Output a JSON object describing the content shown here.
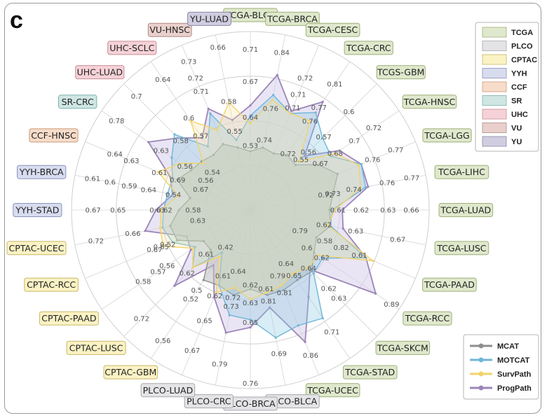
{
  "panel_label": "c",
  "chart_data": {
    "type": "radar",
    "rlim": [
      0.3,
      1.0
    ],
    "grid": true,
    "legend_position": "top-right (cohorts), bottom-right (methods)",
    "cohort_legend": [
      {
        "name": "TCGA",
        "color": "#dfe8cc",
        "border": "#9fb07a"
      },
      {
        "name": "PLCO",
        "color": "#e4e3e6",
        "border": "#a8a8ae"
      },
      {
        "name": "CPTAC",
        "color": "#fbf2c4",
        "border": "#c9b86a"
      },
      {
        "name": "YYH",
        "color": "#d7dcef",
        "border": "#8c93b8"
      },
      {
        "name": "CCF",
        "color": "#f8dcca",
        "border": "#c99a7c"
      },
      {
        "name": "SR",
        "color": "#cfe6e3",
        "border": "#7fb2ab"
      },
      {
        "name": "UHC",
        "color": "#f5d2d7",
        "border": "#c98c96"
      },
      {
        "name": "VU",
        "color": "#e9d0cc",
        "border": "#b08a84"
      },
      {
        "name": "YU",
        "color": "#d0cde0",
        "border": "#8d88a8"
      }
    ],
    "categories": [
      {
        "label": "TCGA-BLCA",
        "group": "TCGA"
      },
      {
        "label": "TCGA-BRCA",
        "group": "TCGA"
      },
      {
        "label": "TCGA-CESC",
        "group": "TCGA"
      },
      {
        "label": "TCGA-CRC",
        "group": "TCGA"
      },
      {
        "label": "TCGS-GBM",
        "group": "TCGA"
      },
      {
        "label": "TCGA-HNSC",
        "group": "TCGA"
      },
      {
        "label": "TCGA-LGG",
        "group": "TCGA"
      },
      {
        "label": "TCGA-LIHC",
        "group": "TCGA"
      },
      {
        "label": "TCGA-LUAD",
        "group": "TCGA"
      },
      {
        "label": "TCGA-LUSC",
        "group": "TCGA"
      },
      {
        "label": "TCGA-PAAD",
        "group": "TCGA"
      },
      {
        "label": "TCGA-RCC",
        "group": "TCGA"
      },
      {
        "label": "TCGA-SKCM",
        "group": "TCGA"
      },
      {
        "label": "TCGA-STAD",
        "group": "TCGA"
      },
      {
        "label": "TCGA-UCEC",
        "group": "TCGA"
      },
      {
        "label": "PLCO-BLCA",
        "group": "PLCO"
      },
      {
        "label": "PLCO-BRCA",
        "group": "PLCO"
      },
      {
        "label": "PLCO-CRC",
        "group": "PLCO"
      },
      {
        "label": "PLCO-LUAD",
        "group": "PLCO"
      },
      {
        "label": "CPTAC-GBM",
        "group": "CPTAC"
      },
      {
        "label": "CPTAC-LUSC",
        "group": "CPTAC"
      },
      {
        "label": "CPTAC-PAAD",
        "group": "CPTAC"
      },
      {
        "label": "CPTAC-RCC",
        "group": "CPTAC"
      },
      {
        "label": "CPTAC-UCEC",
        "group": "CPTAC"
      },
      {
        "label": "YYH-STAD",
        "group": "YYH"
      },
      {
        "label": "YYH-BRCA",
        "group": "YYH"
      },
      {
        "label": "CCF-HNSC",
        "group": "CCF"
      },
      {
        "label": "SR-CRC",
        "group": "SR"
      },
      {
        "label": "UHC-LUAD",
        "group": "UHC"
      },
      {
        "label": "UHC-SCLC",
        "group": "UHC"
      },
      {
        "label": "VU-HNSC",
        "group": "VU"
      },
      {
        "label": "YU-LUAD",
        "group": "YU"
      }
    ],
    "series": [
      {
        "name": "MCAT",
        "color": "#8e8e8e",
        "fill": "#bdbdbd",
        "fill_opacity": 0.55,
        "values": [
          0.53,
          0.55,
          0.54,
          0.56,
          0.55,
          0.62,
          0.67,
          0.63,
          0.61,
          0.62,
          0.58,
          0.6,
          0.64,
          0.63,
          0.64,
          0.64,
          0.61,
          0.64,
          0.62,
          0.63,
          0.52,
          0.52,
          0.61,
          0.62,
          0.58,
          0.54,
          0.61,
          0.58,
          0.57,
          0.56,
          0.58,
          0.55
        ]
      },
      {
        "name": "MOTCAT",
        "color": "#6fb6d8",
        "fill": "#8fcbe3",
        "fill_opacity": 0.35,
        "values": [
          0.67,
          0.76,
          0.71,
          0.76,
          0.7,
          0.68,
          0.77,
          0.76,
          0.62,
          0.62,
          0.79,
          0.64,
          0.65,
          0.81,
          0.79,
          0.81,
          0.73,
          0.72,
          0.62,
          0.5,
          0.62,
          0.56,
          0.63,
          0.65,
          0.64,
          0.63,
          0.63,
          0.67,
          0.72,
          0.6,
          0.71,
          0.58
        ]
      },
      {
        "name": "SurvPath",
        "color": "#f2d36b",
        "fill": "#f7e59e",
        "fill_opacity": 0.3,
        "values": [
          0.64,
          0.74,
          0.71,
          0.72,
          0.57,
          0.7,
          0.76,
          0.74,
          0.63,
          0.61,
          0.82,
          0.62,
          0.62,
          0.6,
          0.62,
          0.63,
          0.65,
          0.61,
          0.65,
          0.52,
          0.62,
          0.57,
          0.67,
          0.66,
          0.65,
          0.59,
          0.69,
          0.63,
          0.56,
          0.72,
          0.64,
          0.73
        ]
      },
      {
        "name": "ProgPath",
        "color": "#9b86b8",
        "fill": "#d9d0eb",
        "fill_opacity": 0.55,
        "values": [
          0.71,
          0.84,
          0.72,
          0.81,
          0.6,
          0.72,
          0.77,
          0.77,
          0.66,
          0.67,
          0.79,
          0.89,
          0.63,
          0.71,
          0.86,
          0.69,
          0.76,
          0.79,
          0.67,
          0.56,
          0.72,
          0.58,
          0.57,
          0.72,
          0.67,
          0.61,
          0.64,
          0.78,
          0.7,
          0.64,
          0.73,
          0.66
        ]
      }
    ],
    "value_labels": [
      {
        "i": 0,
        "v": "0.71",
        "r": 0.9
      },
      {
        "i": 0,
        "v": "0.67",
        "r": 0.72
      },
      {
        "i": 0,
        "v": "0.64",
        "r": 0.52
      },
      {
        "i": 0,
        "v": "0.53",
        "r": 0.36
      },
      {
        "i": 1,
        "v": "0.84",
        "r": 0.9
      },
      {
        "i": 1,
        "v": "0.76",
        "r": 0.58
      },
      {
        "i": 1,
        "v": "0.74",
        "r": 0.4
      },
      {
        "i": 2,
        "v": "0.72",
        "r": 0.8
      },
      {
        "i": 2,
        "v": "0.71",
        "r": 0.7
      },
      {
        "i": 2,
        "v": "0.71",
        "r": 0.62
      },
      {
        "i": 3,
        "v": "0.81",
        "r": 0.85
      },
      {
        "i": 3,
        "v": "0.77",
        "r": 0.69
      },
      {
        "i": 3,
        "v": "0.76",
        "r": 0.6
      },
      {
        "i": 3,
        "v": "0.72",
        "r": 0.38
      },
      {
        "i": 4,
        "v": "0.6",
        "r": 0.78
      },
      {
        "i": 4,
        "v": "0.57",
        "r": 0.58
      },
      {
        "i": 4,
        "v": "0.56",
        "r": 0.46
      },
      {
        "i": 4,
        "v": "0.55",
        "r": 0.4
      },
      {
        "i": 5,
        "v": "0.72",
        "r": 0.83
      },
      {
        "i": 5,
        "v": "0.7",
        "r": 0.7
      },
      {
        "i": 5,
        "v": "0.68",
        "r": 0.57
      },
      {
        "i": 5,
        "v": "0.67",
        "r": 0.47
      },
      {
        "i": 6,
        "v": "0.77",
        "r": 0.88
      },
      {
        "i": 6,
        "v": "0.76",
        "r": 0.74
      },
      {
        "i": 7,
        "v": "0.77",
        "r": 0.92
      },
      {
        "i": 7,
        "v": "0.76",
        "r": 0.78
      },
      {
        "i": 7,
        "v": "0.74",
        "r": 0.59
      },
      {
        "i": 7,
        "v": "0.73",
        "r": 0.47
      },
      {
        "i": 7,
        "v": "0.72",
        "r": 0.43
      },
      {
        "i": 8,
        "v": "0.66",
        "r": 0.9
      },
      {
        "i": 8,
        "v": "0.63",
        "r": 0.77
      },
      {
        "i": 8,
        "v": "0.62",
        "r": 0.62
      },
      {
        "i": 8,
        "v": "0.61",
        "r": 0.49
      },
      {
        "i": 9,
        "v": "0.67",
        "r": 0.84
      },
      {
        "i": 9,
        "v": "0.63",
        "r": 0.6
      },
      {
        "i": 9,
        "v": "0.62",
        "r": 0.42
      },
      {
        "i": 10,
        "v": "0.79",
        "r": 0.3
      },
      {
        "i": 10,
        "v": "0.82",
        "r": 0.55
      },
      {
        "i": 10,
        "v": "0.58",
        "r": 0.45
      },
      {
        "i": 10,
        "v": "0.61",
        "r": 0.66
      },
      {
        "i": 11,
        "v": "0.89",
        "r": 0.95
      },
      {
        "i": 11,
        "v": "0.62",
        "r": 0.48
      },
      {
        "i": 11,
        "v": "0.6",
        "r": 0.38
      },
      {
        "i": 12,
        "v": "0.63",
        "r": 0.7
      },
      {
        "i": 12,
        "v": "0.62",
        "r": 0.62
      },
      {
        "i": 12,
        "v": "0.64",
        "r": 0.46
      },
      {
        "i": 13,
        "v": "0.71",
        "r": 0.82
      },
      {
        "i": 13,
        "v": "0.65",
        "r": 0.44
      },
      {
        "i": 13,
        "v": "0.64",
        "r": 0.36
      },
      {
        "i": 14,
        "v": "0.86",
        "r": 0.88
      },
      {
        "i": 14,
        "v": "0.81",
        "r": 0.5
      },
      {
        "i": 14,
        "v": "0.79",
        "r": 0.4
      },
      {
        "i": 15,
        "v": "0.69",
        "r": 0.82
      },
      {
        "i": 15,
        "v": "0.81",
        "r": 0.52
      },
      {
        "i": 15,
        "v": "0.61",
        "r": 0.45
      },
      {
        "i": 16,
        "v": "0.76",
        "r": 0.97
      },
      {
        "i": 16,
        "v": "0.65",
        "r": 0.63
      },
      {
        "i": 16,
        "v": "0.63",
        "r": 0.52
      },
      {
        "i": 16,
        "v": "0.62",
        "r": 0.42
      },
      {
        "i": 17,
        "v": "0.79",
        "r": 0.88
      },
      {
        "i": 17,
        "v": "0.73",
        "r": 0.55
      },
      {
        "i": 17,
        "v": "0.72",
        "r": 0.5
      },
      {
        "i": 17,
        "v": "0.64",
        "r": 0.35
      },
      {
        "i": 18,
        "v": "0.67",
        "r": 0.85
      },
      {
        "i": 18,
        "v": "0.65",
        "r": 0.67
      },
      {
        "i": 18,
        "v": "0.62",
        "r": 0.52
      },
      {
        "i": 18,
        "v": "0.61",
        "r": 0.4
      },
      {
        "i": 19,
        "v": "0.56",
        "r": 0.88
      },
      {
        "i": 19,
        "v": "0.52",
        "r": 0.6
      },
      {
        "i": 19,
        "v": "0.5",
        "r": 0.54
      },
      {
        "i": 19,
        "v": "0.42",
        "r": 0.25
      },
      {
        "i": 20,
        "v": "0.72",
        "r": 0.86
      },
      {
        "i": 20,
        "v": "0.62",
        "r": 0.5
      },
      {
        "i": 20,
        "v": "0.61",
        "r": 0.35
      },
      {
        "i": 21,
        "v": "0.58",
        "r": 0.72
      },
      {
        "i": 21,
        "v": "0.57",
        "r": 0.62
      },
      {
        "i": 21,
        "v": "0.56",
        "r": 0.56
      },
      {
        "i": 22,
        "v": "0.52",
        "r": 0.5
      },
      {
        "i": 22,
        "v": "0.65",
        "r": 0.54
      },
      {
        "i": 22,
        "v": "0.67",
        "r": 0.58
      },
      {
        "i": 23,
        "v": "0.72",
        "r": 0.88
      },
      {
        "i": 23,
        "v": "0.66",
        "r": 0.67
      },
      {
        "i": 23,
        "v": "0.63",
        "r": 0.3
      },
      {
        "i": 24,
        "v": "0.67",
        "r": 0.88
      },
      {
        "i": 24,
        "v": "0.65",
        "r": 0.74
      },
      {
        "i": 24,
        "v": "0.63",
        "r": 0.52
      },
      {
        "i": 24,
        "v": "0.62",
        "r": 0.48
      },
      {
        "i": 24,
        "v": "0.58",
        "r": 0.32
      },
      {
        "i": 25,
        "v": "0.61",
        "r": 0.9
      },
      {
        "i": 25,
        "v": "0.6",
        "r": 0.8
      },
      {
        "i": 25,
        "v": "0.59",
        "r": 0.69
      },
      {
        "i": 25,
        "v": "0.54",
        "r": 0.44
      },
      {
        "i": 25,
        "v": "0.64",
        "r": 0.58
      },
      {
        "i": 26,
        "v": "0.64",
        "r": 0.82
      },
      {
        "i": 26,
        "v": "0.63",
        "r": 0.72
      },
      {
        "i": 26,
        "v": "0.61",
        "r": 0.55
      },
      {
        "i": 26,
        "v": "0.69",
        "r": 0.44
      },
      {
        "i": 26,
        "v": "0.67",
        "r": 0.3
      },
      {
        "i": 27,
        "v": "0.78",
        "r": 0.9
      },
      {
        "i": 27,
        "v": "0.63",
        "r": 0.6
      },
      {
        "i": 27,
        "v": "0.56",
        "r": 0.44
      },
      {
        "i": 27,
        "v": "0.56",
        "r": 0.3
      },
      {
        "i": 28,
        "v": "0.7",
        "r": 0.9
      },
      {
        "i": 28,
        "v": "0.58",
        "r": 0.55
      },
      {
        "i": 28,
        "v": "0.54",
        "r": 0.3
      },
      {
        "i": 29,
        "v": "0.64",
        "r": 0.88
      },
      {
        "i": 29,
        "v": "0.6",
        "r": 0.62
      },
      {
        "i": 29,
        "v": "0.57",
        "r": 0.5
      },
      {
        "i": 30,
        "v": "0.73",
        "r": 0.9
      },
      {
        "i": 30,
        "v": "0.72",
        "r": 0.8
      },
      {
        "i": 30,
        "v": "0.71",
        "r": 0.72
      },
      {
        "i": 31,
        "v": "0.66",
        "r": 0.93
      },
      {
        "i": 31,
        "v": "0.58",
        "r": 0.62
      },
      {
        "i": 31,
        "v": "0.55",
        "r": 0.45
      }
    ]
  }
}
